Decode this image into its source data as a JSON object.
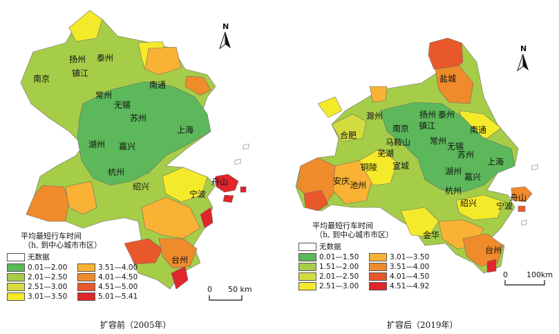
{
  "left_map": {
    "caption": "扩容前（2005年）",
    "north_label": "N",
    "scale_zero": "0",
    "scale_label": "50 km",
    "legend": {
      "title_line1": "平均最短行车时间",
      "title_line2": "（h, 到中心城市市区）",
      "items": [
        {
          "label": "无数据",
          "color": "#ffffff"
        },
        {
          "label": "0.01—2.00",
          "color": "#5cb85a"
        },
        {
          "label": "2.01—2.50",
          "color": "#a6cd48"
        },
        {
          "label": "2.51—3.00",
          "color": "#d3dc3f"
        },
        {
          "label": "3.01—3.50",
          "color": "#f5ea2a"
        },
        {
          "label": "3.51—4.00",
          "color": "#f9b233"
        },
        {
          "label": "4.01—4.50",
          "color": "#ef8b2b"
        },
        {
          "label": "4.51—5.00",
          "color": "#e9582b"
        },
        {
          "label": "5.01—5.41",
          "color": "#e0252b"
        }
      ]
    },
    "cities": [
      "南京",
      "扬州",
      "泰州",
      "镇江",
      "常州",
      "南通",
      "无锡",
      "苏州",
      "上海",
      "湖州",
      "嘉兴",
      "杭州",
      "绍兴",
      "宁波",
      "舟山",
      "台州"
    ]
  },
  "right_map": {
    "caption": "扩容后（2019年）",
    "north_label": "N",
    "scale_zero": "0",
    "scale_label": "100km",
    "legend": {
      "title_line1": "平均最短行车时间",
      "title_line2": "（h, 到中心城市市区）",
      "items": [
        {
          "label": "无数据",
          "color": "#ffffff"
        },
        {
          "label": "0.01—1.50",
          "color": "#5cb85a"
        },
        {
          "label": "1.51—2.00",
          "color": "#a6cd48"
        },
        {
          "label": "2.01—2.50",
          "color": "#d3dc3f"
        },
        {
          "label": "2.51—3.00",
          "color": "#f5ea2a"
        },
        {
          "label": "3.01—3.50",
          "color": "#f9b233"
        },
        {
          "label": "3.51—4.00",
          "color": "#ef8b2b"
        },
        {
          "label": "4.01—4.50",
          "color": "#e9582b"
        },
        {
          "label": "4.51—4.92",
          "color": "#e0252b"
        }
      ]
    },
    "cities": [
      "盐城",
      "扬州",
      "泰州",
      "南通",
      "滁州",
      "南京",
      "镇江",
      "合肥",
      "马鞍山",
      "常州",
      "无锡",
      "苏州",
      "芜湖",
      "上海",
      "铜陵",
      "宣城",
      "湖州",
      "嘉兴",
      "安庆",
      "池州",
      "杭州",
      "舟山",
      "绍兴",
      "宁波",
      "金华",
      "台州"
    ]
  }
}
